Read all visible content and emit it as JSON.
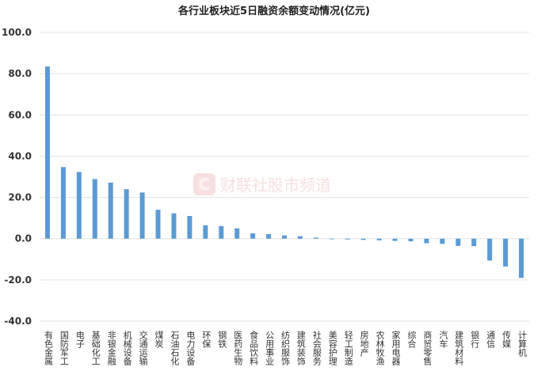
{
  "chart_data": {
    "type": "bar",
    "title": "各行业板块近5日融资余额变动情况(亿元)",
    "xlabel": "",
    "ylabel": "",
    "ylim": [
      -40,
      100
    ],
    "yticks": [
      "100.0",
      "80.0",
      "60.0",
      "40.0",
      "20.0",
      "0.0",
      "-20.0",
      "-40.0"
    ],
    "grid": true,
    "bar_color": "#5b9bd5",
    "categories": [
      "有色金属",
      "国防军工",
      "电子",
      "基础化工",
      "非银金融",
      "机械设备",
      "交通运输",
      "煤炭",
      "石油石化",
      "电力设备",
      "环保",
      "钢铁",
      "医药生物",
      "食品饮料",
      "公用事业",
      "纺织服饰",
      "建筑装饰",
      "社会服务",
      "美容护理",
      "轻工制造",
      "房地产",
      "农林牧渔",
      "家用电器",
      "综合",
      "商贸零售",
      "汽车",
      "建筑材料",
      "银行",
      "通信",
      "传媒",
      "计算机"
    ],
    "values": [
      83.5,
      34.7,
      32.3,
      28.9,
      27.2,
      24.0,
      22.4,
      14.0,
      12.3,
      11.0,
      6.5,
      6.1,
      5.0,
      2.6,
      2.2,
      1.6,
      1.2,
      0.5,
      -0.3,
      -0.4,
      -0.6,
      -0.8,
      -1.1,
      -1.3,
      -2.2,
      -2.5,
      -3.5,
      -3.6,
      -10.6,
      -13.5,
      -19.0
    ]
  },
  "watermark": {
    "logo_letter": "C",
    "text": "财联社股市频道"
  }
}
